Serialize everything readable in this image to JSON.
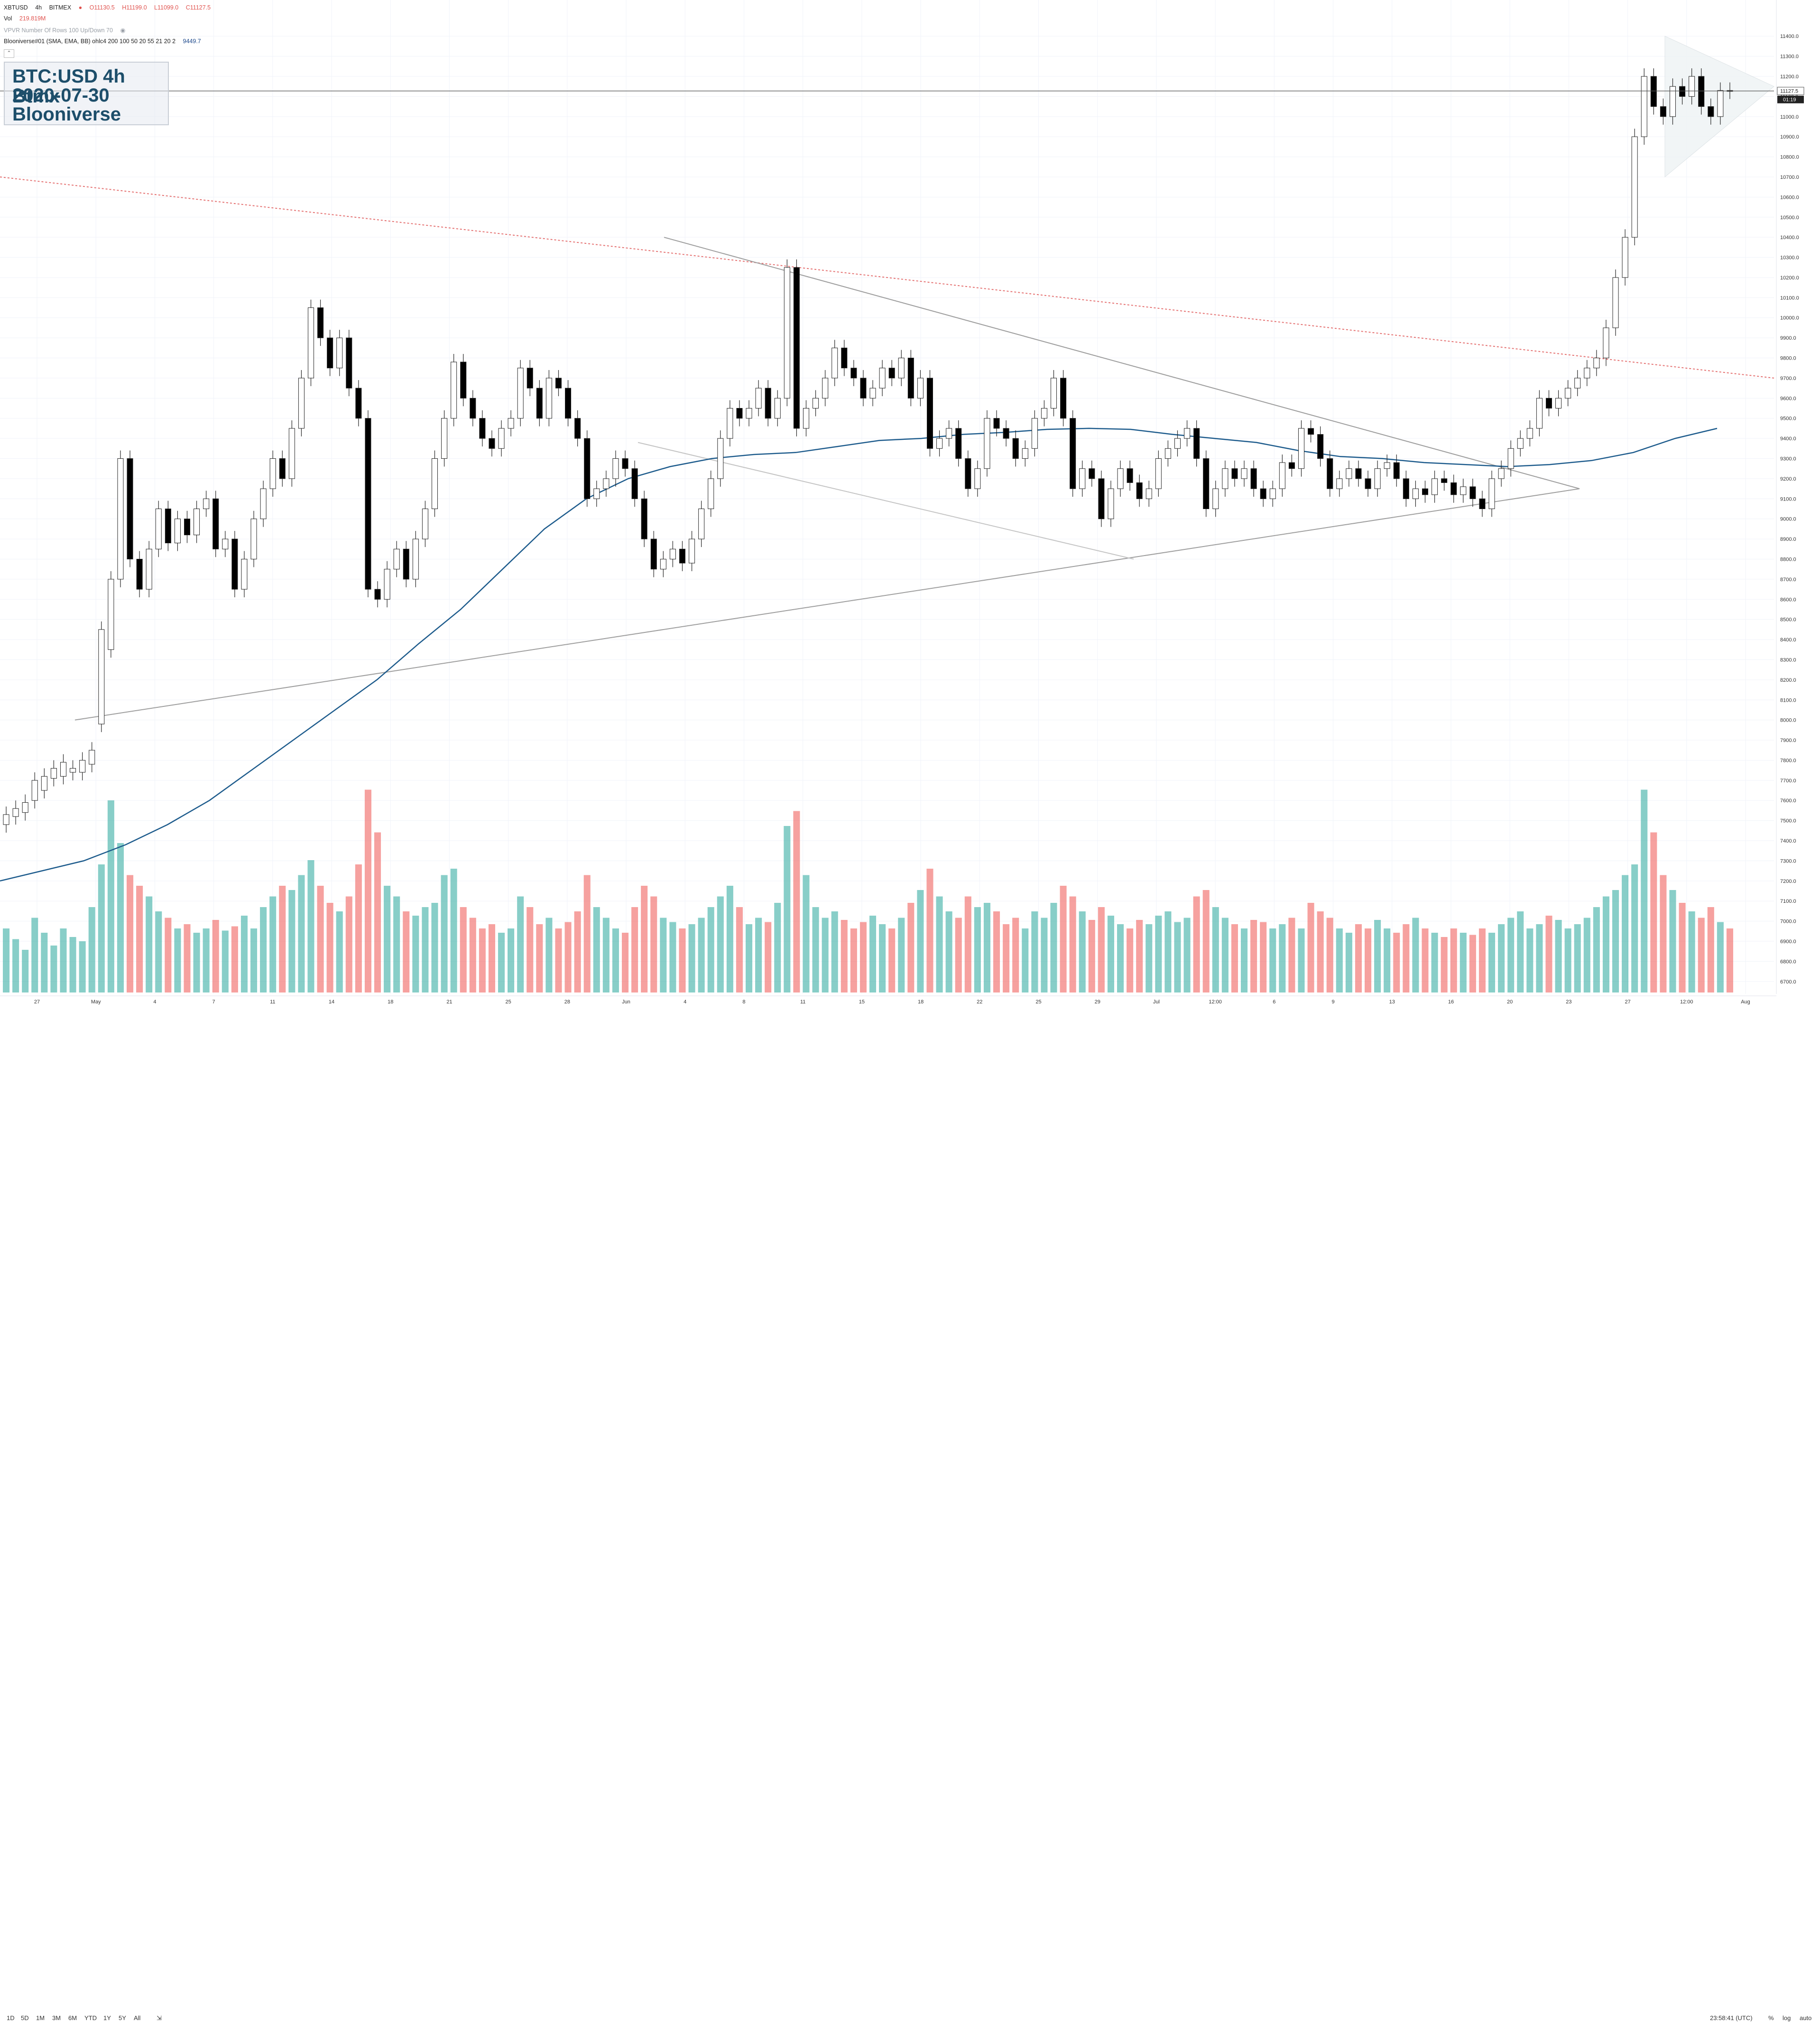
{
  "header": {
    "symbol": "XBTUSD",
    "interval": "4h",
    "exchange": "BITMEX",
    "open": "O11130.5",
    "high": "H11199.0",
    "low": "L11099.0",
    "close": "C11127.5",
    "vol_label": "Vol",
    "vol_value": "219.819M",
    "vpvr_label": "VPVR Number Of Rows 100 Up/Down 70",
    "indicator_label": "Blooniverse#01 (SMA, EMA, BB) ohlc4 200 100 50 20 55 21 20 2",
    "indicator_value": "9449.7"
  },
  "title_box": {
    "line1": "BTC:USD 4h Btmx",
    "line2": "2020-07-30",
    "line3": "Blooniverse"
  },
  "price_axis": {
    "ticks": [
      "11400.0",
      "11300.0",
      "11200.0",
      "11100.0",
      "11000.0",
      "10900.0",
      "10800.0",
      "10700.0",
      "10600.0",
      "10500.0",
      "10400.0",
      "10300.0",
      "10200.0",
      "10100.0",
      "10000.0",
      "9900.0",
      "9800.0",
      "9700.0",
      "9600.0",
      "9500.0",
      "9400.0",
      "9300.0",
      "9200.0",
      "9100.0",
      "9000.0",
      "8900.0",
      "8800.0",
      "8700.0",
      "8600.0",
      "8500.0",
      "8400.0",
      "8300.0",
      "8200.0",
      "8100.0",
      "8000.0",
      "7900.0",
      "7800.0",
      "7700.0",
      "7600.0",
      "7500.0",
      "7400.0",
      "7300.0",
      "7200.0",
      "7100.0",
      "7000.0",
      "6900.0",
      "6800.0",
      "6700.0"
    ],
    "last_price_label": "11127.5",
    "countdown_label": "01:19"
  },
  "time_axis": {
    "labels": [
      "27",
      "May",
      "4",
      "7",
      "11",
      "14",
      "18",
      "21",
      "25",
      "28",
      "Jun",
      "4",
      "8",
      "11",
      "15",
      "18",
      "22",
      "25",
      "29",
      "Jul",
      "12:00",
      "6",
      "9",
      "13",
      "16",
      "20",
      "23",
      "27",
      "12:00",
      "Aug"
    ]
  },
  "bottom_bar": {
    "timeframes": [
      "1D",
      "5D",
      "1M",
      "3M",
      "6M",
      "YTD",
      "1Y",
      "5Y",
      "All"
    ],
    "clock": "23:58:41 (UTC)",
    "pct": "%",
    "log": "log",
    "auto": "auto"
  },
  "colors": {
    "up": "#26a69a",
    "down": "#ef5350",
    "candle_up_fill": "#ffffff",
    "candle_down_fill": "#000000",
    "sma": "#1d5b8c",
    "trendline": "#9e9e9e",
    "resistance": "#e57373",
    "grid": "#f0f3fa"
  },
  "chart_data": {
    "type": "candlestick",
    "interval": "4h",
    "ylim": [
      6650,
      11450
    ],
    "price_candles": [
      [
        7480,
        7530
      ],
      [
        7520,
        7560
      ],
      [
        7540,
        7590
      ],
      [
        7600,
        7700
      ],
      [
        7650,
        7720
      ],
      [
        7710,
        7760
      ],
      [
        7720,
        7790
      ],
      [
        7740,
        7760
      ],
      [
        7740,
        7800
      ],
      [
        7780,
        7850
      ],
      [
        7980,
        8450
      ],
      [
        8350,
        8700
      ],
      [
        8700,
        9300
      ],
      [
        9300,
        8800
      ],
      [
        8800,
        8650
      ],
      [
        8650,
        8850
      ],
      [
        8850,
        9050
      ],
      [
        9050,
        8880
      ],
      [
        8880,
        9000
      ],
      [
        9000,
        8920
      ],
      [
        8920,
        9050
      ],
      [
        9050,
        9100
      ],
      [
        9100,
        8850
      ],
      [
        8850,
        8900
      ],
      [
        8900,
        8650
      ],
      [
        8650,
        8800
      ],
      [
        8800,
        9000
      ],
      [
        9000,
        9150
      ],
      [
        9150,
        9300
      ],
      [
        9300,
        9200
      ],
      [
        9200,
        9450
      ],
      [
        9450,
        9700
      ],
      [
        9700,
        10050
      ],
      [
        10050,
        9900
      ],
      [
        9900,
        9750
      ],
      [
        9750,
        9900
      ],
      [
        9900,
        9650
      ],
      [
        9650,
        9500
      ],
      [
        9500,
        8650
      ],
      [
        8650,
        8600
      ],
      [
        8600,
        8750
      ],
      [
        8750,
        8850
      ],
      [
        8850,
        8700
      ],
      [
        8700,
        8900
      ],
      [
        8900,
        9050
      ],
      [
        9050,
        9300
      ],
      [
        9300,
        9500
      ],
      [
        9500,
        9780
      ],
      [
        9780,
        9600
      ],
      [
        9600,
        9500
      ],
      [
        9500,
        9400
      ],
      [
        9400,
        9350
      ],
      [
        9350,
        9450
      ],
      [
        9450,
        9500
      ],
      [
        9500,
        9750
      ],
      [
        9750,
        9650
      ],
      [
        9650,
        9500
      ],
      [
        9500,
        9700
      ],
      [
        9700,
        9650
      ],
      [
        9650,
        9500
      ],
      [
        9500,
        9400
      ],
      [
        9400,
        9100
      ],
      [
        9100,
        9150
      ],
      [
        9150,
        9200
      ],
      [
        9200,
        9300
      ],
      [
        9300,
        9250
      ],
      [
        9250,
        9100
      ],
      [
        9100,
        8900
      ],
      [
        8900,
        8750
      ],
      [
        8750,
        8800
      ],
      [
        8800,
        8850
      ],
      [
        8850,
        8780
      ],
      [
        8780,
        8900
      ],
      [
        8900,
        9050
      ],
      [
        9050,
        9200
      ],
      [
        9200,
        9400
      ],
      [
        9400,
        9550
      ],
      [
        9550,
        9500
      ],
      [
        9500,
        9550
      ],
      [
        9550,
        9650
      ],
      [
        9650,
        9500
      ],
      [
        9500,
        9600
      ],
      [
        9600,
        10250
      ],
      [
        10250,
        9450
      ],
      [
        9450,
        9550
      ],
      [
        9550,
        9600
      ],
      [
        9600,
        9700
      ],
      [
        9700,
        9850
      ],
      [
        9850,
        9750
      ],
      [
        9750,
        9700
      ],
      [
        9700,
        9600
      ],
      [
        9600,
        9650
      ],
      [
        9650,
        9750
      ],
      [
        9750,
        9700
      ],
      [
        9700,
        9800
      ],
      [
        9800,
        9600
      ],
      [
        9600,
        9700
      ],
      [
        9700,
        9350
      ],
      [
        9350,
        9400
      ],
      [
        9400,
        9450
      ],
      [
        9450,
        9300
      ],
      [
        9300,
        9150
      ],
      [
        9150,
        9250
      ],
      [
        9250,
        9500
      ],
      [
        9500,
        9450
      ],
      [
        9450,
        9400
      ],
      [
        9400,
        9300
      ],
      [
        9300,
        9350
      ],
      [
        9350,
        9500
      ],
      [
        9500,
        9550
      ],
      [
        9550,
        9700
      ],
      [
        9700,
        9500
      ],
      [
        9500,
        9150
      ],
      [
        9150,
        9250
      ],
      [
        9250,
        9200
      ],
      [
        9200,
        9000
      ],
      [
        9000,
        9150
      ],
      [
        9150,
        9250
      ],
      [
        9250,
        9180
      ],
      [
        9180,
        9100
      ],
      [
        9100,
        9150
      ],
      [
        9150,
        9300
      ],
      [
        9300,
        9350
      ],
      [
        9350,
        9400
      ],
      [
        9400,
        9450
      ],
      [
        9450,
        9300
      ],
      [
        9300,
        9050
      ],
      [
        9050,
        9150
      ],
      [
        9150,
        9250
      ],
      [
        9250,
        9200
      ],
      [
        9200,
        9250
      ],
      [
        9250,
        9150
      ],
      [
        9150,
        9100
      ],
      [
        9100,
        9150
      ],
      [
        9150,
        9280
      ],
      [
        9280,
        9250
      ],
      [
        9250,
        9450
      ],
      [
        9450,
        9420
      ],
      [
        9420,
        9300
      ],
      [
        9300,
        9150
      ],
      [
        9150,
        9200
      ],
      [
        9200,
        9250
      ],
      [
        9250,
        9200
      ],
      [
        9200,
        9150
      ],
      [
        9150,
        9250
      ],
      [
        9250,
        9280
      ],
      [
        9280,
        9200
      ],
      [
        9200,
        9100
      ],
      [
        9100,
        9150
      ],
      [
        9150,
        9120
      ],
      [
        9120,
        9200
      ],
      [
        9200,
        9180
      ],
      [
        9180,
        9120
      ],
      [
        9120,
        9160
      ],
      [
        9160,
        9100
      ],
      [
        9100,
        9050
      ],
      [
        9050,
        9200
      ],
      [
        9200,
        9250
      ],
      [
        9250,
        9350
      ],
      [
        9350,
        9400
      ],
      [
        9400,
        9450
      ],
      [
        9450,
        9600
      ],
      [
        9600,
        9550
      ],
      [
        9550,
        9600
      ],
      [
        9600,
        9650
      ],
      [
        9650,
        9700
      ],
      [
        9700,
        9750
      ],
      [
        9750,
        9800
      ],
      [
        9800,
        9950
      ],
      [
        9950,
        10200
      ],
      [
        10200,
        10400
      ],
      [
        10400,
        10900
      ],
      [
        10900,
        11200
      ],
      [
        11200,
        11050
      ],
      [
        11050,
        11000
      ],
      [
        11000,
        11150
      ],
      [
        11150,
        11100
      ],
      [
        11100,
        11200
      ],
      [
        11200,
        11050
      ],
      [
        11050,
        11000
      ],
      [
        11000,
        11130
      ],
      [
        11130,
        11127.5
      ]
    ],
    "volume": {
      "note": "volume histogram, relative heights (0-1)",
      "values": [
        0.3,
        0.25,
        0.2,
        0.35,
        0.28,
        0.22,
        0.3,
        0.26,
        0.24,
        0.4,
        0.6,
        0.9,
        0.7,
        0.55,
        0.5,
        0.45,
        0.38,
        0.35,
        0.3,
        0.32,
        0.28,
        0.3,
        0.34,
        0.29,
        0.31,
        0.36,
        0.3,
        0.4,
        0.45,
        0.5,
        0.48,
        0.55,
        0.62,
        0.5,
        0.42,
        0.38,
        0.45,
        0.6,
        0.95,
        0.75,
        0.5,
        0.45,
        0.38,
        0.36,
        0.4,
        0.42,
        0.55,
        0.58,
        0.4,
        0.35,
        0.3,
        0.32,
        0.28,
        0.3,
        0.45,
        0.4,
        0.32,
        0.35,
        0.3,
        0.33,
        0.38,
        0.55,
        0.4,
        0.35,
        0.3,
        0.28,
        0.4,
        0.5,
        0.45,
        0.35,
        0.33,
        0.3,
        0.32,
        0.35,
        0.4,
        0.45,
        0.5,
        0.4,
        0.32,
        0.35,
        0.33,
        0.42,
        0.78,
        0.85,
        0.55,
        0.4,
        0.35,
        0.38,
        0.34,
        0.3,
        0.33,
        0.36,
        0.32,
        0.3,
        0.35,
        0.42,
        0.48,
        0.58,
        0.45,
        0.38,
        0.35,
        0.45,
        0.4,
        0.42,
        0.38,
        0.32,
        0.35,
        0.3,
        0.38,
        0.35,
        0.42,
        0.5,
        0.45,
        0.38,
        0.34,
        0.4,
        0.36,
        0.32,
        0.3,
        0.34,
        0.32,
        0.36,
        0.38,
        0.33,
        0.35,
        0.45,
        0.48,
        0.4,
        0.35,
        0.32,
        0.3,
        0.34,
        0.33,
        0.3,
        0.32,
        0.35,
        0.3,
        0.42,
        0.38,
        0.35,
        0.3,
        0.28,
        0.32,
        0.3,
        0.34,
        0.3,
        0.28,
        0.32,
        0.35,
        0.3,
        0.28,
        0.26,
        0.3,
        0.28,
        0.27,
        0.3,
        0.28,
        0.32,
        0.35,
        0.38,
        0.3,
        0.32,
        0.36,
        0.34,
        0.3,
        0.32,
        0.35,
        0.4,
        0.45,
        0.48,
        0.55,
        0.6,
        0.95,
        0.75,
        0.55,
        0.48,
        0.42,
        0.38,
        0.35,
        0.4,
        0.33,
        0.3,
        0.28
      ]
    },
    "sma_200": [
      7200,
      7250,
      7300,
      7380,
      7480,
      7600,
      7750,
      7900,
      8050,
      8200,
      8380,
      8550,
      8750,
      8950,
      9100,
      9200,
      9260,
      9300,
      9320,
      9330,
      9360,
      9390,
      9400,
      9420,
      9430,
      9445,
      9450,
      9445,
      9420,
      9400,
      9380,
      9340,
      9310,
      9300,
      9280,
      9270,
      9260,
      9270,
      9290,
      9330,
      9400,
      9449.7
    ]
  }
}
